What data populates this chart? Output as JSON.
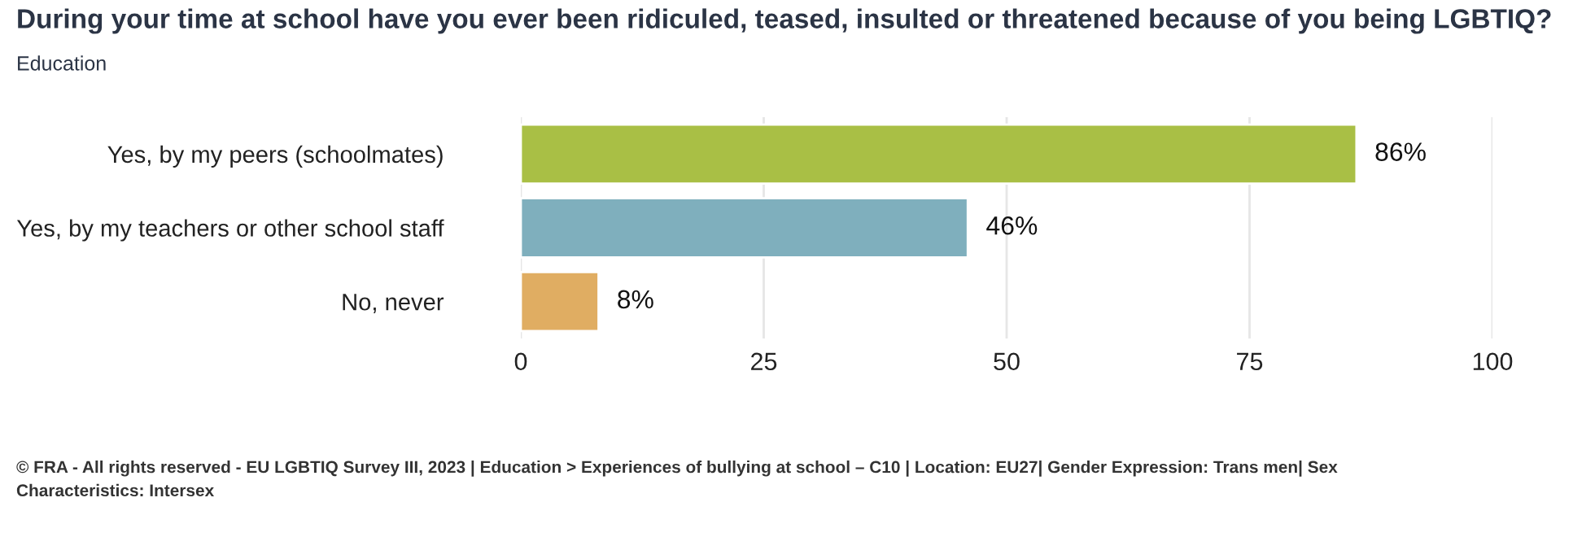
{
  "chart_data": {
    "type": "bar",
    "orientation": "horizontal",
    "title": "During your time at school have you ever been ridiculed, teased, insulted or threatened because of you being LGBTIQ?",
    "subtitle": "Education",
    "categories": [
      "Yes, by my peers (schoolmates)",
      "Yes, by my teachers or other school staff",
      "No, never"
    ],
    "values": [
      86,
      46,
      8
    ],
    "colors": [
      "#a9bf45",
      "#7fafbd",
      "#e0ad62"
    ],
    "value_labels": [
      "86%",
      "46%",
      "8%"
    ],
    "xlim": [
      0,
      100
    ],
    "xticks": [
      0,
      25,
      50,
      75,
      100
    ],
    "grid": "x",
    "annotations": [
      "© FRA - All rights reserved - EU LGBTIQ Survey III, 2023 | Education > Experiences of bullying at school – C10 | Location: EU27| Gender Expression: Trans men| Sex Characteristics: Intersex"
    ]
  }
}
